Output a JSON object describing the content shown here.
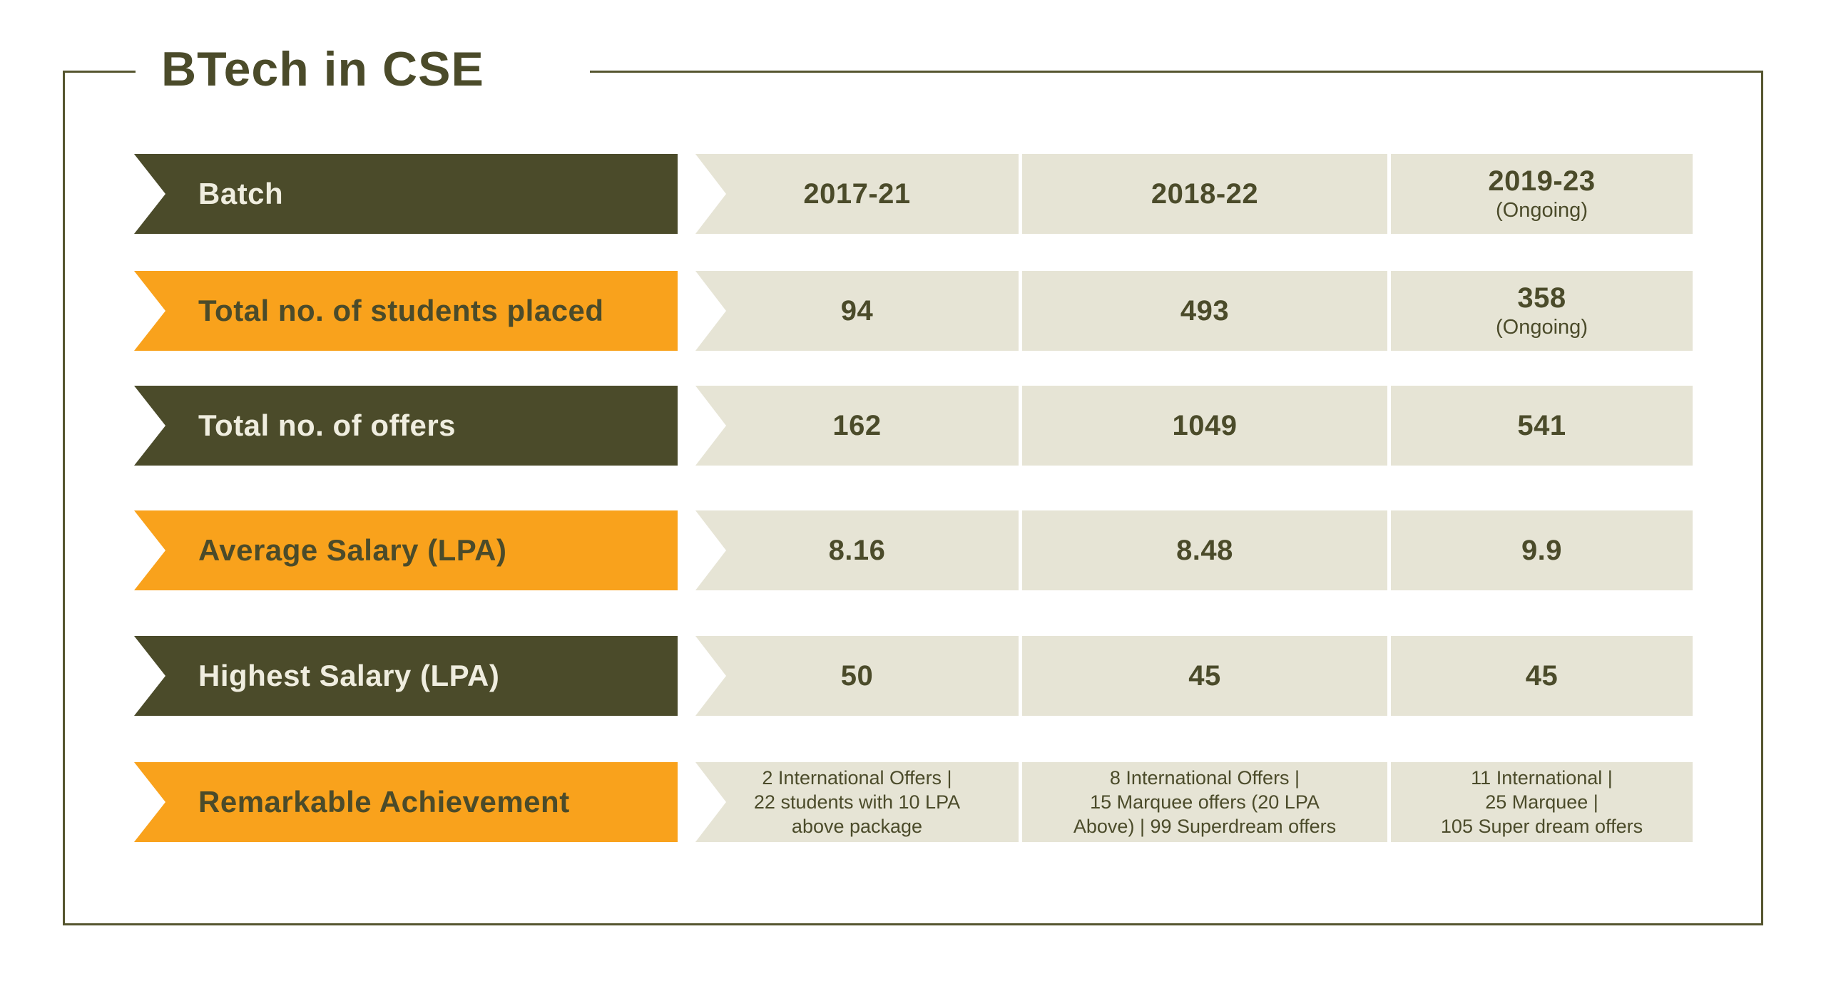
{
  "title": "BTech in CSE",
  "colors": {
    "dark_olive": "#4B4B2A",
    "orange": "#F9A21C",
    "cell_beige": "#E6E4D5",
    "cream_text": "#EFEDDF",
    "frame_border": "#55552F"
  },
  "table": {
    "rows": [
      {
        "label": "Batch",
        "style": "dark",
        "cells": [
          {
            "main": "2017-21"
          },
          {
            "main": "2018-22"
          },
          {
            "main": "2019-23",
            "sub": "(Ongoing)"
          }
        ]
      },
      {
        "label": "Total no. of students placed",
        "style": "orange",
        "cells": [
          {
            "main": "94"
          },
          {
            "main": "493"
          },
          {
            "main": "358",
            "sub": "(Ongoing)"
          }
        ]
      },
      {
        "label": "Total no. of offers",
        "style": "dark",
        "cells": [
          {
            "main": "162"
          },
          {
            "main": "1049"
          },
          {
            "main": "541"
          }
        ]
      },
      {
        "label": "Average Salary (LPA)",
        "style": "orange",
        "cells": [
          {
            "main": "8.16"
          },
          {
            "main": "8.48"
          },
          {
            "main": "9.9"
          }
        ]
      },
      {
        "label": "Highest Salary (LPA)",
        "style": "dark",
        "cells": [
          {
            "main": "50"
          },
          {
            "main": "45"
          },
          {
            "main": "45"
          }
        ]
      },
      {
        "label": "Remarkable Achievement",
        "style": "orange",
        "cells": [
          {
            "lines": [
              "2 International Offers |",
              "22 students with 10 LPA",
              "above package"
            ]
          },
          {
            "lines": [
              "8 International Offers |",
              "15 Marquee offers (20 LPA",
              "Above) | 99 Superdream offers"
            ]
          },
          {
            "lines": [
              "11 International |",
              "25 Marquee |",
              "105 Super dream offers"
            ]
          }
        ]
      }
    ]
  },
  "chart_data": {
    "type": "table",
    "title": "BTech in CSE",
    "columns": [
      "Batch",
      "2017-21",
      "2018-22",
      "2019-23 (Ongoing)"
    ],
    "rows": [
      [
        "Total no. of students placed",
        "94",
        "493",
        "358 (Ongoing)"
      ],
      [
        "Total no. of offers",
        "162",
        "1049",
        "541"
      ],
      [
        "Average Salary (LPA)",
        "8.16",
        "8.48",
        "9.9"
      ],
      [
        "Highest Salary (LPA)",
        "50",
        "45",
        "45"
      ],
      [
        "Remarkable Achievement",
        "2 International Offers | 22 students with 10 LPA above package",
        "8 International Offers | 15 Marquee offers (20 LPA Above) | 99 Superdream offers",
        "11 International | 25 Marquee | 105 Super dream offers"
      ]
    ]
  }
}
